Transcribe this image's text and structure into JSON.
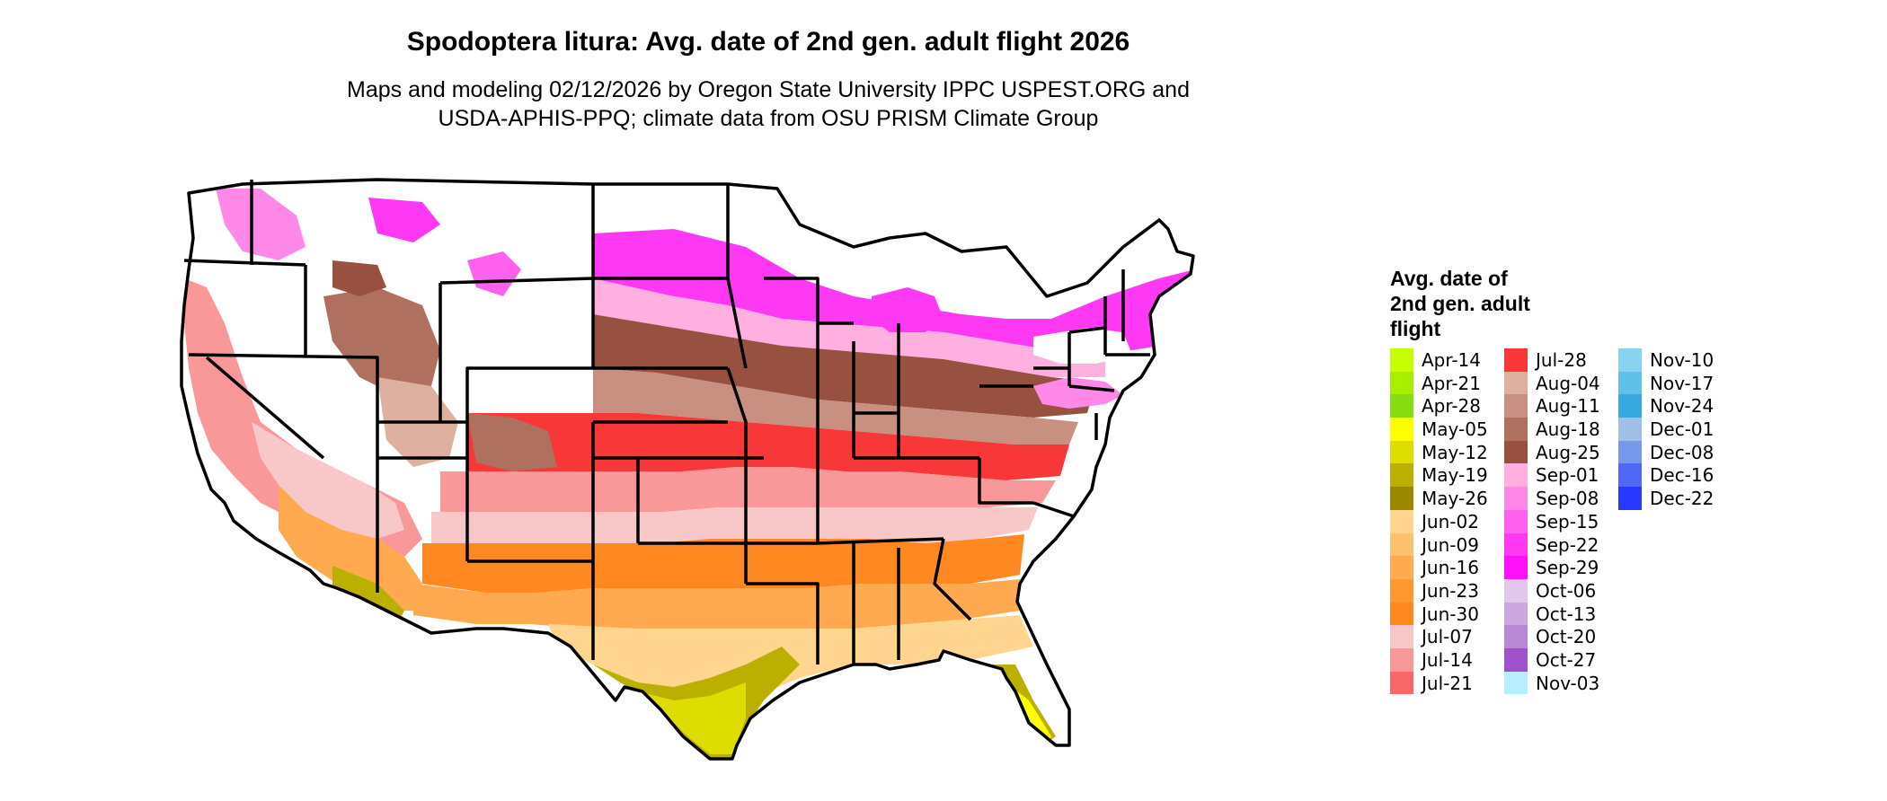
{
  "title": "Spodoptera litura: Avg. date of 2nd gen. adult flight 2026",
  "subtitle": {
    "line1": "Maps and modeling 02/12/2026 by Oregon State University IPPC USPEST.ORG and",
    "line2": "USDA-APHIS-PPQ; climate data from OSU PRISM Climate Group"
  },
  "legend": {
    "title_lines": [
      "Avg. date of",
      "2nd gen. adult",
      "flight"
    ],
    "columns": [
      [
        {
          "label": "Apr-14",
          "color": "#c8ff00"
        },
        {
          "label": "Apr-21",
          "color": "#a8ee00"
        },
        {
          "label": "Apr-28",
          "color": "#88dd10"
        },
        {
          "label": "May-05",
          "color": "#ffff00"
        },
        {
          "label": "May-12",
          "color": "#dddd00"
        },
        {
          "label": "May-19",
          "color": "#bbb000"
        },
        {
          "label": "May-26",
          "color": "#998800"
        },
        {
          "label": "Jun-02",
          "color": "#ffd590"
        },
        {
          "label": "Jun-09",
          "color": "#ffc070"
        },
        {
          "label": "Jun-16",
          "color": "#ffaa50"
        },
        {
          "label": "Jun-23",
          "color": "#ff9830"
        },
        {
          "label": "Jun-30",
          "color": "#ff8820"
        },
        {
          "label": "Jul-07",
          "color": "#f8c8c8"
        },
        {
          "label": "Jul-14",
          "color": "#f89898"
        },
        {
          "label": "Jul-21",
          "color": "#f86868"
        }
      ],
      [
        {
          "label": "Jul-28",
          "color": "#f83838"
        },
        {
          "label": "Aug-04",
          "color": "#ddb0a0"
        },
        {
          "label": "Aug-11",
          "color": "#c89080"
        },
        {
          "label": "Aug-18",
          "color": "#b07060"
        },
        {
          "label": "Aug-25",
          "color": "#985040"
        },
        {
          "label": "Sep-01",
          "color": "#ffb0e0"
        },
        {
          "label": "Sep-08",
          "color": "#ff88e8"
        },
        {
          "label": "Sep-15",
          "color": "#ff60ee"
        },
        {
          "label": "Sep-22",
          "color": "#ff38f4"
        },
        {
          "label": "Sep-29",
          "color": "#ff10fa"
        },
        {
          "label": "Oct-06",
          "color": "#e0c8ec"
        },
        {
          "label": "Oct-13",
          "color": "#cca8e0"
        },
        {
          "label": "Oct-20",
          "color": "#b888d4"
        },
        {
          "label": "Oct-27",
          "color": "#a050c8"
        },
        {
          "label": "Nov-03",
          "color": "#b8ecff"
        }
      ],
      [
        {
          "label": "Nov-10",
          "color": "#88d4f0"
        },
        {
          "label": "Nov-17",
          "color": "#60c0e8"
        },
        {
          "label": "Nov-24",
          "color": "#38a8e0"
        },
        {
          "label": "Dec-01",
          "color": "#a0c0e8"
        },
        {
          "label": "Dec-08",
          "color": "#7898ee"
        },
        {
          "label": "Dec-16",
          "color": "#5068f4"
        },
        {
          "label": "Dec-22",
          "color": "#2838ff"
        }
      ]
    ]
  }
}
